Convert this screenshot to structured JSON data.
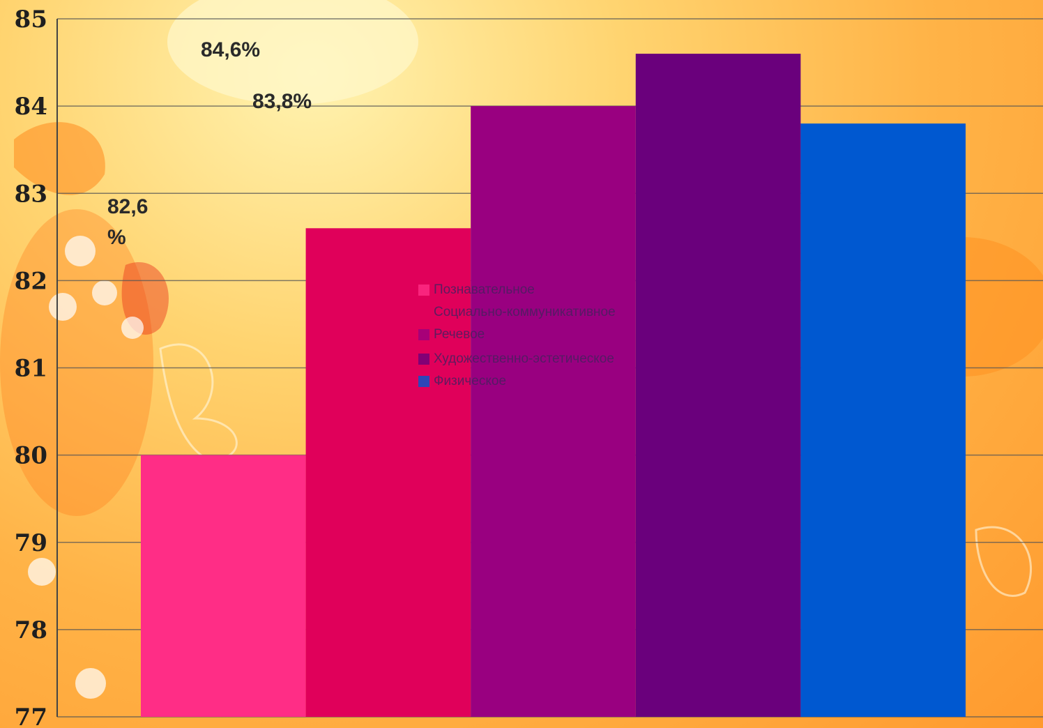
{
  "chart_data": {
    "type": "bar",
    "title": "",
    "xlabel": "",
    "ylabel": "",
    "ylim": [
      77,
      85
    ],
    "yticks": [
      85,
      84,
      83,
      82,
      81,
      80,
      79,
      78,
      77
    ],
    "grid": true,
    "legend_position": "center",
    "series": [
      {
        "name": "Познавательное",
        "values": [
          80.0
        ],
        "color": "#ff2d86"
      },
      {
        "name": "Социально-коммуникативное",
        "values": [
          82.6
        ],
        "color": "#e0005a"
      },
      {
        "name": "Речевое",
        "values": [
          84.0
        ],
        "color": "#990080"
      },
      {
        "name": "Художественно-эстетическое",
        "values": [
          84.6
        ],
        "color": "#6a007c"
      },
      {
        "name": "Физическое",
        "values": [
          83.8
        ],
        "color": "#0058d0"
      }
    ],
    "annotations": [
      "84,6%",
      "83,8%",
      "82,6",
      "%"
    ]
  }
}
